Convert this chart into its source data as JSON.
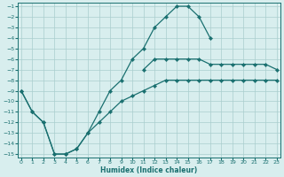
{
  "xlabel": "Humidex (Indice chaleur)",
  "bg_color": "#d8eeee",
  "grid_color": "#aacece",
  "line_color": "#1a7070",
  "xlim": [
    0,
    23
  ],
  "ylim": [
    -15,
    -1
  ],
  "xticks": [
    0,
    1,
    2,
    3,
    4,
    5,
    6,
    7,
    8,
    9,
    10,
    11,
    12,
    13,
    14,
    15,
    16,
    17,
    18,
    19,
    20,
    21,
    22,
    23
  ],
  "yticks": [
    -1,
    -2,
    -3,
    -4,
    -5,
    -6,
    -7,
    -8,
    -9,
    -10,
    -11,
    -12,
    -13,
    -14,
    -15
  ],
  "curve_upper_x": [
    0,
    1,
    2,
    3,
    4,
    5,
    6,
    7,
    8,
    9,
    10,
    11,
    12,
    13,
    14,
    15,
    16,
    17
  ],
  "curve_upper_y": [
    -9,
    -11,
    -12,
    -15,
    -15,
    -14.5,
    -13,
    -11,
    -9,
    -8,
    -6,
    -5,
    -3,
    -2,
    -1,
    -1,
    -2,
    -4
  ],
  "curve_lower_x": [
    0,
    1,
    2,
    3,
    4,
    5,
    6,
    7,
    8,
    9,
    10,
    11,
    12,
    13,
    14,
    15,
    16,
    17,
    18,
    19,
    20,
    21,
    22,
    23
  ],
  "curve_lower_y": [
    -9,
    -11,
    -12,
    -15,
    -15,
    -14.5,
    -13,
    -12,
    -11,
    -10,
    -9.5,
    -9,
    -8.5,
    -8,
    -8,
    -8,
    -8,
    -8,
    -8,
    -8,
    -8,
    -8,
    -8,
    -8
  ],
  "curve_right_x": [
    11,
    12,
    13,
    14,
    15,
    16,
    17,
    18,
    19,
    20,
    21,
    22,
    23
  ],
  "curve_right_y": [
    -7,
    -6,
    -6,
    -6,
    -6,
    -6,
    -6.5,
    -6.5,
    -6.5,
    -6.5,
    -6.5,
    -6.5,
    -7
  ]
}
